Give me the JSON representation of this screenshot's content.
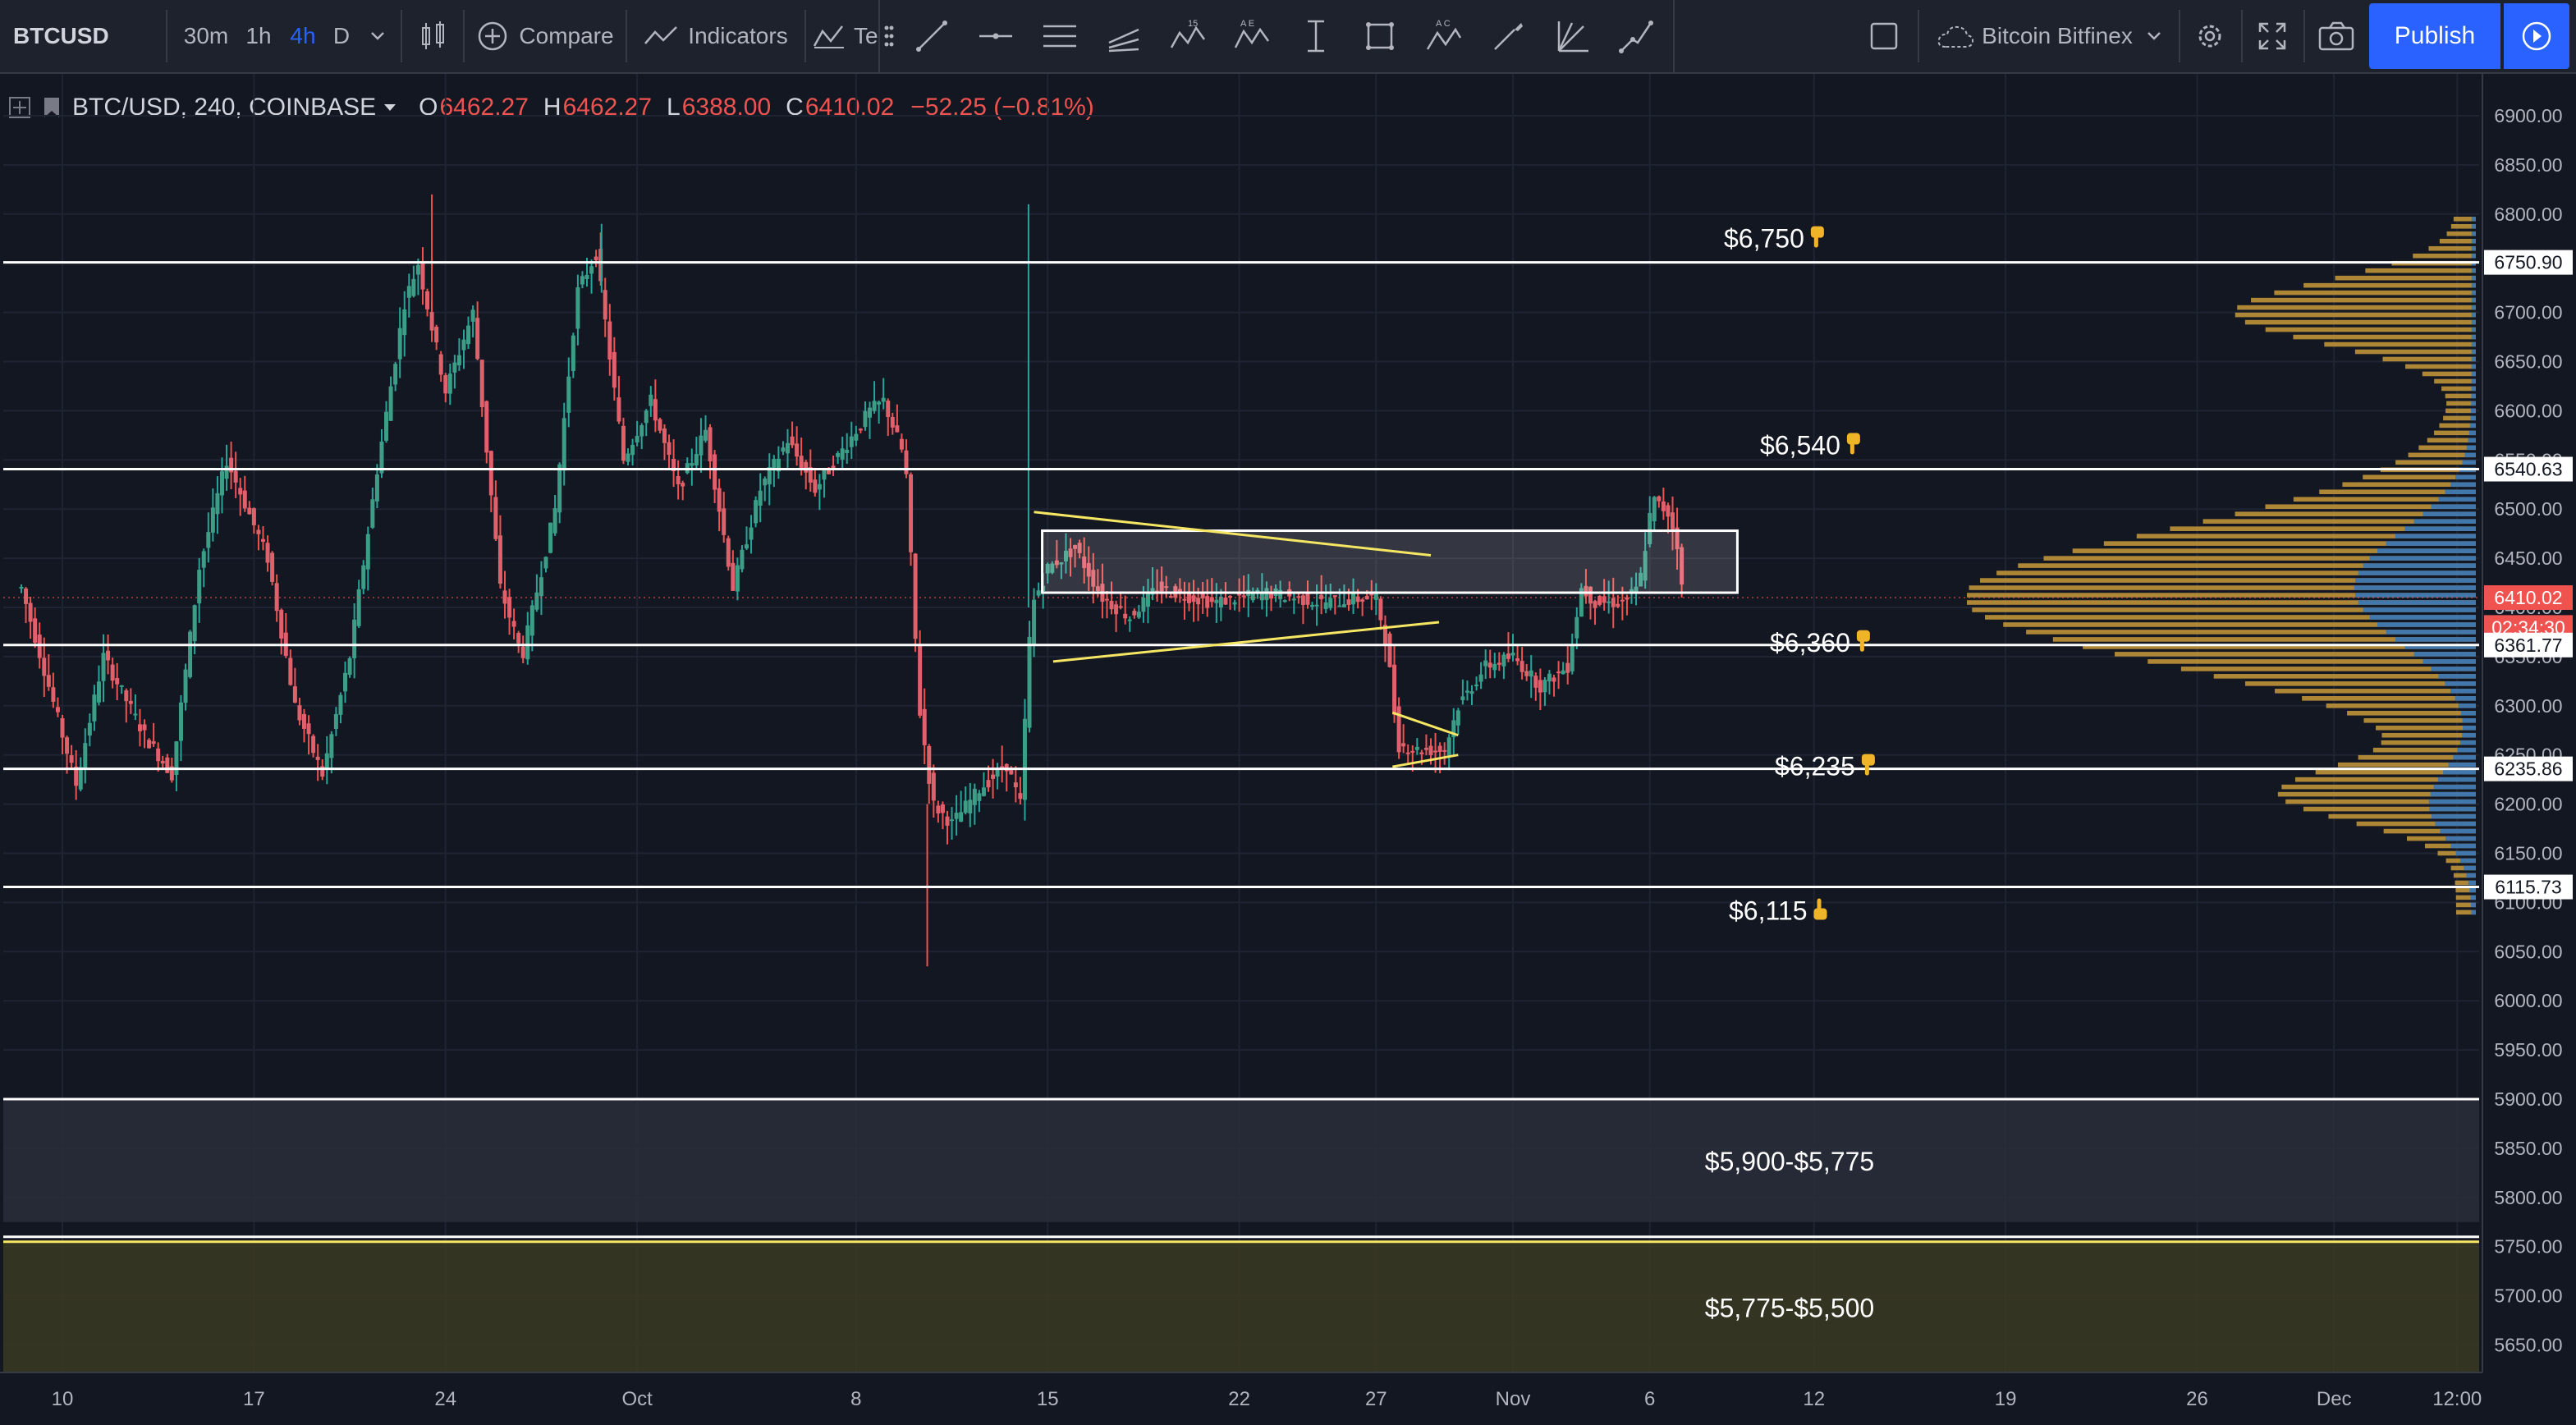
{
  "toolbar": {
    "symbol": "BTCUSD",
    "intervals": [
      "30m",
      "1h",
      "4h",
      "D"
    ],
    "active_interval": "4h",
    "compare_label": "Compare",
    "indicators_label": "Indicators",
    "templates_label": "Te",
    "layout_name": "Bitcoin Bitfinex",
    "publish_label": "Publish"
  },
  "legend": {
    "title": "BTC/USD, 240, COINBASE",
    "open_label": "O",
    "open": "6462.27",
    "high_label": "H",
    "high": "6462.27",
    "low_label": "L",
    "low": "6388.00",
    "close_label": "C",
    "close": "6410.02",
    "change": "−52.25 (−0.81%)"
  },
  "price_axis": {
    "ticks": [
      "6900.00",
      "6850.00",
      "6800.00",
      "6750.00",
      "6700.00",
      "6650.00",
      "6600.00",
      "6550.00",
      "6500.00",
      "6450.00",
      "6400.00",
      "6350.00",
      "6300.00",
      "6250.00",
      "6200.00",
      "6150.00",
      "6100.00",
      "6050.00",
      "6000.00",
      "5950.00",
      "5900.00",
      "5850.00",
      "5800.00",
      "5750.00",
      "5700.00",
      "5650.00"
    ],
    "tick_values": [
      6900,
      6850,
      6800,
      6750,
      6700,
      6650,
      6600,
      6550,
      6500,
      6450,
      6400,
      6350,
      6300,
      6250,
      6200,
      6150,
      6100,
      6050,
      6000,
      5950,
      5900,
      5850,
      5800,
      5750,
      5700,
      5650
    ],
    "tags": [
      {
        "label": "6750.90",
        "value": 6750.9,
        "style": "white"
      },
      {
        "label": "6540.63",
        "value": 6540.63,
        "style": "white"
      },
      {
        "label": "6410.02",
        "value": 6410.02,
        "style": "red"
      },
      {
        "label": "02:34:30",
        "value": 6388,
        "style": "red"
      },
      {
        "label": "6361.77",
        "value": 6361.77,
        "style": "white"
      },
      {
        "label": "6235.86",
        "value": 6235.86,
        "style": "white"
      },
      {
        "label": "6115.73",
        "value": 6115.73,
        "style": "white"
      }
    ]
  },
  "time_axis": {
    "labels": [
      "10",
      "17",
      "24",
      "Oct",
      "8",
      "15",
      "22",
      "27",
      "Nov",
      "6",
      "12",
      "19",
      "26",
      "Dec",
      "12:00"
    ],
    "label_days": [
      0,
      7,
      14,
      21,
      29,
      36,
      43,
      48,
      53,
      58,
      64,
      71,
      78,
      83,
      87.5
    ]
  },
  "levels": [
    {
      "label": "$6,750",
      "value": 6750.9,
      "icon": "pointing-down-icon"
    },
    {
      "label": "$6,540",
      "value": 6540.63,
      "icon": "pointing-down-icon"
    },
    {
      "label": "$6,360",
      "value": 6361.77,
      "icon": "pointing-down-icon"
    },
    {
      "label": "$6,235",
      "value": 6235.86,
      "icon": "pointing-down-icon"
    },
    {
      "label": "$6,115",
      "value": 6115.73,
      "icon": "pointing-up-icon"
    }
  ],
  "zones": [
    {
      "label": "$5,900-$5,775",
      "from": 5775,
      "to": 5900,
      "color": "#2a2e39"
    },
    {
      "label": "$5,775-$5,500",
      "from": 5500,
      "to": 5755,
      "color": "#3b3a22"
    }
  ],
  "consolidation_box": {
    "top": 6478,
    "bottom": 6415,
    "from_day": 35.8,
    "to_day": 61.2
  },
  "trendlines": [
    {
      "d1": 35.5,
      "p1": 6497,
      "d2": 50,
      "p2": 6453
    },
    {
      "d1": 36.2,
      "p1": 6345,
      "d2": 50.3,
      "p2": 6385
    },
    {
      "d1": 48.6,
      "p1": 6293,
      "d2": 51,
      "p2": 6270
    },
    {
      "d1": 48.6,
      "p1": 6238,
      "d2": 51,
      "p2": 6250
    }
  ],
  "chart_data": {
    "type": "candlestick",
    "title": "BTC/USD, 240, COINBASE",
    "ylim": [
      5625,
      6925
    ],
    "price_anchors": [
      [
        -1.5,
        6420
      ],
      [
        0.5,
        6220
      ],
      [
        1.5,
        6350
      ],
      [
        3,
        6270
      ],
      [
        4,
        6230
      ],
      [
        5,
        6440
      ],
      [
        6,
        6550
      ],
      [
        7.5,
        6450
      ],
      [
        8.5,
        6300
      ],
      [
        9.5,
        6230
      ],
      [
        10.5,
        6350
      ],
      [
        11.5,
        6540
      ],
      [
        12.5,
        6710
      ],
      [
        13,
        6750
      ],
      [
        14,
        6620
      ],
      [
        15,
        6700
      ],
      [
        16,
        6420
      ],
      [
        16.8,
        6350
      ],
      [
        18,
        6500
      ],
      [
        18.8,
        6720
      ],
      [
        19.5,
        6760
      ],
      [
        20.5,
        6550
      ],
      [
        21.5,
        6610
      ],
      [
        22.5,
        6520
      ],
      [
        23.5,
        6580
      ],
      [
        24.5,
        6420
      ],
      [
        25.5,
        6520
      ],
      [
        26.5,
        6570
      ],
      [
        27.5,
        6520
      ],
      [
        28.5,
        6560
      ],
      [
        29.5,
        6600
      ],
      [
        30,
        6610
      ],
      [
        30.8,
        6550
      ],
      [
        31.3,
        6300
      ],
      [
        31.8,
        6200
      ],
      [
        32.5,
        6180
      ],
      [
        33.5,
        6215
      ],
      [
        34.5,
        6240
      ],
      [
        35,
        6200
      ],
      [
        35.4,
        6400
      ],
      [
        36,
        6440
      ],
      [
        37,
        6460
      ],
      [
        38,
        6410
      ],
      [
        39,
        6390
      ],
      [
        40,
        6420
      ],
      [
        42,
        6405
      ],
      [
        44,
        6415
      ],
      [
        46,
        6405
      ],
      [
        48,
        6410
      ],
      [
        48.4,
        6360
      ],
      [
        48.8,
        6260
      ],
      [
        49.5,
        6255
      ],
      [
        50.5,
        6255
      ],
      [
        51,
        6300
      ],
      [
        52,
        6340
      ],
      [
        53,
        6350
      ],
      [
        54,
        6320
      ],
      [
        55,
        6340
      ],
      [
        55.5,
        6420
      ],
      [
        56,
        6405
      ],
      [
        57,
        6405
      ],
      [
        57.6,
        6420
      ],
      [
        58.1,
        6510
      ],
      [
        58.7,
        6495
      ],
      [
        59,
        6465
      ],
      [
        59.2,
        6410
      ]
    ]
  }
}
